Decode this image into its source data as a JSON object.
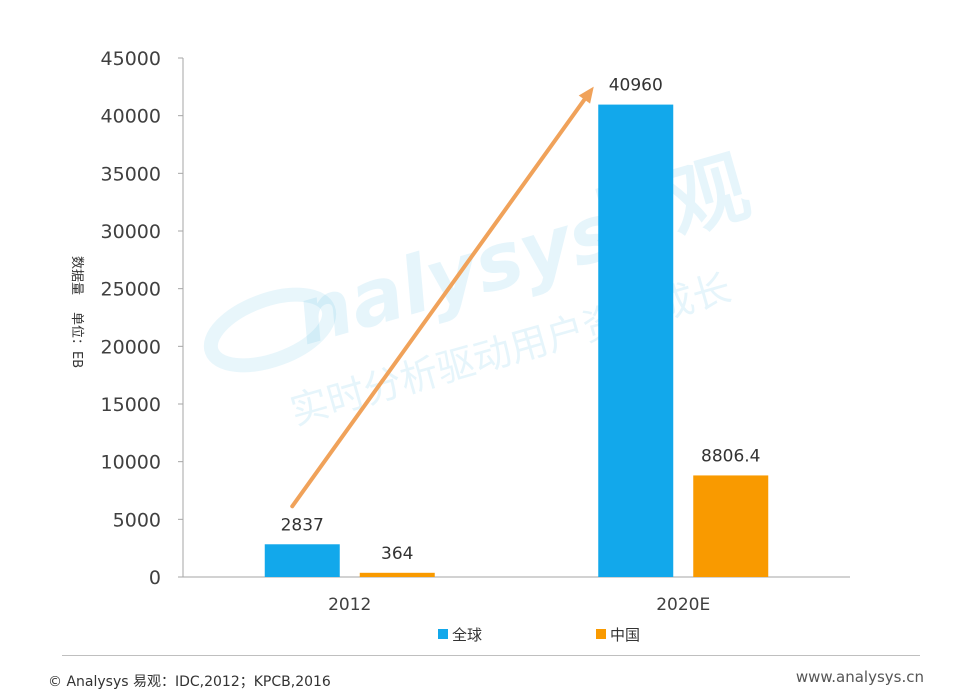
{
  "chart_data": {
    "type": "bar",
    "title": "",
    "ylabel_lines": [
      "数据量",
      "单位：EB"
    ],
    "categories": [
      "2012",
      "2020E"
    ],
    "series": [
      {
        "name": "全球",
        "values": [
          2837,
          40960
        ],
        "labels": [
          "2837",
          "40960"
        ],
        "color": "#12a8eb"
      },
      {
        "name": "中国",
        "values": [
          364,
          8806.4
        ],
        "labels": [
          "364",
          "8806.4"
        ],
        "color": "#f99a00"
      }
    ],
    "ylim": [
      0,
      45000
    ],
    "yticks": [
      "0",
      "5000",
      "10000",
      "15000",
      "20000",
      "25000",
      "30000",
      "35000",
      "40000",
      "45000"
    ],
    "grid": false,
    "legend_position": "bottom",
    "trend_arrow_color": "#f0a25a"
  },
  "watermark": {
    "brand": "nalysys",
    "brand_cn": "易观",
    "slogan": "实时分析驱动用户资产成长"
  },
  "footer": {
    "source": "© Analysys 易观：IDC,2012；KPCB,2016",
    "url": "www.analysys.cn"
  }
}
